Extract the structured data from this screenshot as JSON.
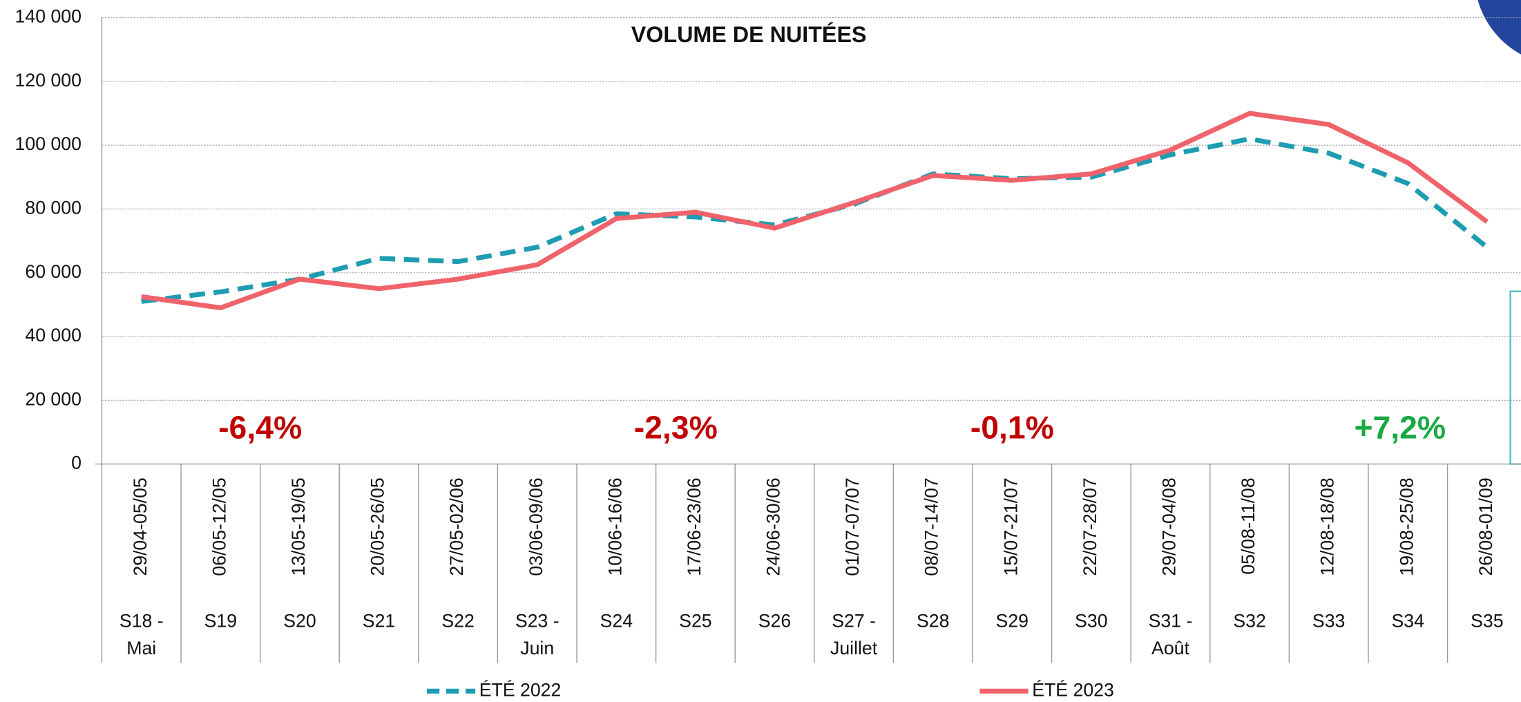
{
  "chart_data": {
    "type": "line",
    "title": "VOLUME DE NUITÉES",
    "categories": [
      [
        "S18 -",
        "Mai"
      ],
      [
        "S19"
      ],
      [
        "S20"
      ],
      [
        "S21"
      ],
      [
        "S22"
      ],
      [
        "S23 -",
        "Juin"
      ],
      [
        "S24"
      ],
      [
        "S25"
      ],
      [
        "S26"
      ],
      [
        "S27 -",
        "Juillet"
      ],
      [
        "S28"
      ],
      [
        "S29"
      ],
      [
        "S30"
      ],
      [
        "S31 -",
        "Août"
      ],
      [
        "S32"
      ],
      [
        "S33"
      ],
      [
        "S34"
      ],
      [
        "S35"
      ]
    ],
    "dates": [
      "29/04-05/05",
      "06/05-12/05",
      "13/05-19/05",
      "20/05-26/05",
      "27/05-02/06",
      "03/06-09/06",
      "10/06-16/06",
      "17/06-23/06",
      "24/06-30/06",
      "01/07-07/07",
      "08/07-14/07",
      "15/07-21/07",
      "22/07-28/07",
      "29/07-04/08",
      "05/08-11/08",
      "12/08-18/08",
      "19/08-25/08",
      "26/08-01/09"
    ],
    "series": [
      {
        "name": "ÉTÉ 2022",
        "color": "#1d9cb2",
        "dashed": true,
        "values": [
          51000,
          54000,
          58000,
          64500,
          63500,
          68000,
          78500,
          77500,
          75000,
          81500,
          91000,
          89500,
          90000,
          97000,
          102000,
          97500,
          88000,
          68000
        ]
      },
      {
        "name": "ÉTÉ 2023",
        "color": "#f0636b",
        "dashed": false,
        "values": [
          52500,
          49000,
          58000,
          55000,
          58000,
          62500,
          77000,
          79000,
          74000,
          82000,
          90500,
          89000,
          91000,
          98500,
          110000,
          106500,
          94500,
          76000
        ]
      }
    ],
    "ylim": [
      0,
      140000
    ],
    "yticks": [
      0,
      {
        "value": 20000,
        "label": "20 000"
      },
      {
        "value": 40000,
        "label": "40 000"
      },
      {
        "value": 60000,
        "label": "60 000"
      },
      {
        "value": 80000,
        "label": "80 000"
      },
      {
        "value": 100000,
        "label": "100 000"
      },
      {
        "value": 120000,
        "label": "120 000"
      },
      {
        "value": 140000,
        "label": "140 000"
      }
    ],
    "grid": true,
    "legend": "bottom",
    "annotations": [
      {
        "text": "-6,4%",
        "color": "#c00000",
        "category": 1.5
      },
      {
        "text": "-2,3%",
        "color": "#c00000",
        "category": 6.75
      },
      {
        "text": "-0,1%",
        "color": "#c00000",
        "category": 11.0
      },
      {
        "text": "+7,2%",
        "color": "#1aa842",
        "category": 15.9
      }
    ]
  }
}
